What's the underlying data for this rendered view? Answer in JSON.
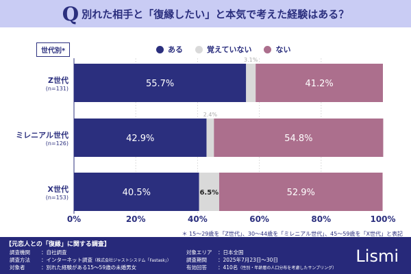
{
  "header": {
    "q": "Q",
    "title": "別れた相手と「復縁したい」と本気で考えた経験はある？"
  },
  "segment_label": "世代別*",
  "chart_data": {
    "type": "bar",
    "orientation": "horizontal",
    "stacked": true,
    "categories": [
      {
        "name": "Z世代",
        "n": "(n=131)"
      },
      {
        "name": "ミレニアル世代",
        "n": "(n=126)"
      },
      {
        "name": "X世代",
        "n": "(n=153)"
      }
    ],
    "series": [
      {
        "name": "ある",
        "color": "#2b2f7e",
        "values": [
          55.7,
          42.9,
          40.5
        ]
      },
      {
        "name": "覚えていない",
        "color": "#d9d9d9",
        "values": [
          3.1,
          2.4,
          6.5
        ]
      },
      {
        "name": "ない",
        "color": "#ac6f8d",
        "values": [
          41.2,
          54.8,
          52.9
        ]
      }
    ],
    "xlim": [
      0,
      100
    ],
    "xticks": [
      "0%",
      "20%",
      "40%",
      "60%",
      "80%",
      "100%"
    ],
    "legend": "top"
  },
  "note": "＊ 15〜29歳を「Z世代」、30〜44歳を「ミレニアル世代」、45〜59歳を「X世代」と表記",
  "footer": {
    "title": "【元恋人との「復縁」に関する調査】",
    "rows": [
      [
        "調査機関",
        "：自社調査"
      ],
      [
        "調査方法",
        "：インターネット調査（株式会社ジャストシステム「Fastask」）"
      ],
      [
        "対象者",
        "：別れた経験がある15〜59歳の未婚男女"
      ],
      [
        "対象エリア",
        "：日本全国"
      ],
      [
        "調査期間",
        "：2025年7月23日〜30日"
      ],
      [
        "有効回答",
        "：410名（性別・年齢層の人口分布を考慮したサンプリング）"
      ]
    ],
    "logo": "Lismi"
  }
}
